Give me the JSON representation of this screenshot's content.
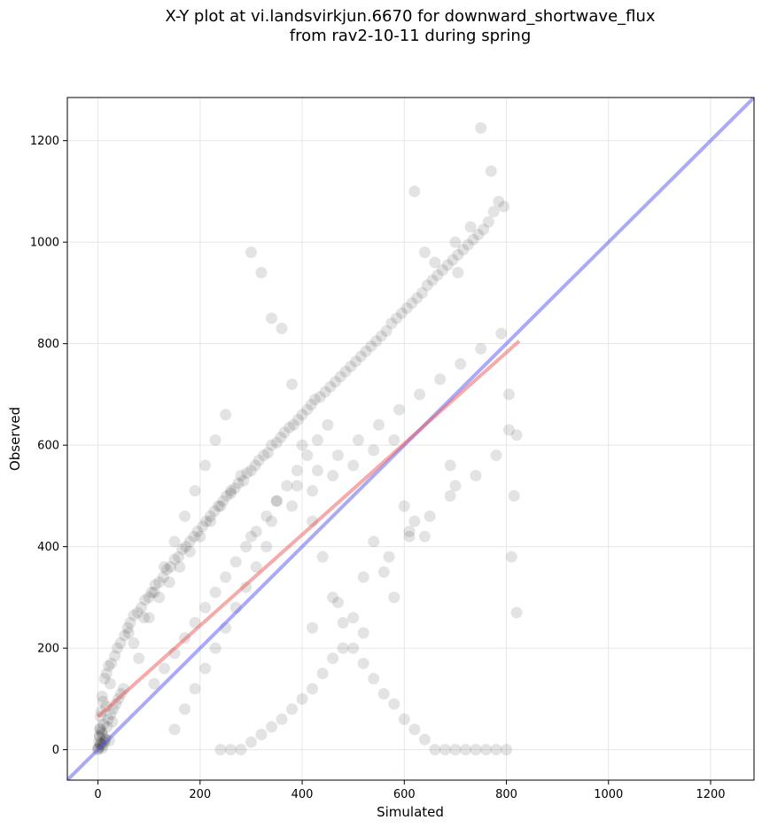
{
  "title": {
    "line1": "X-Y plot at vi.landsvirkjun.6670 for downward_shortwave_flux",
    "line2": "from rav2-10-11 during spring"
  },
  "chart_data": {
    "type": "scatter",
    "title": "X-Y plot at vi.landsvirkjun.6670 for downward_shortwave_flux from rav2-10-11 during spring",
    "xlabel": "Simulated",
    "ylabel": "Observed",
    "xlim": [
      -60,
      1285
    ],
    "ylim": [
      -60,
      1285
    ],
    "xticks": [
      0,
      200,
      400,
      600,
      800,
      1000,
      1200
    ],
    "yticks": [
      0,
      200,
      400,
      600,
      800,
      1000,
      1200
    ],
    "grid": true,
    "colors": {
      "points": "#000000",
      "identity_line": "#5555ee",
      "fit_line": "#ee5555"
    },
    "identity_line": {
      "x": [
        -60,
        1285
      ],
      "y": [
        -60,
        1285
      ]
    },
    "fit_line": {
      "x": [
        0,
        825
      ],
      "y": [
        65,
        805
      ]
    },
    "points": {
      "x": [
        0,
        2,
        5,
        8,
        10,
        12,
        15,
        3,
        6,
        9,
        4,
        7,
        11,
        14,
        18,
        20,
        22,
        25,
        28,
        30,
        35,
        40,
        45,
        50,
        0,
        3,
        5,
        10,
        16,
        24,
        2,
        4,
        6,
        8,
        13,
        17,
        21,
        26,
        33,
        38,
        44,
        52,
        58,
        63,
        70,
        78,
        85,
        92,
        100,
        105,
        112,
        120,
        128,
        135,
        142,
        150,
        158,
        165,
        172,
        180,
        188,
        195,
        205,
        212,
        220,
        228,
        236,
        245,
        252,
        260,
        268,
        275,
        285,
        292,
        300,
        308,
        315,
        325,
        333,
        340,
        350,
        358,
        365,
        375,
        383,
        392,
        400,
        410,
        418,
        425,
        435,
        445,
        455,
        465,
        475,
        485,
        495,
        505,
        515,
        525,
        535,
        545,
        555,
        565,
        575,
        585,
        595,
        605,
        615,
        625,
        635,
        645,
        655,
        665,
        675,
        685,
        695,
        705,
        715,
        725,
        735,
        745,
        755,
        765,
        775,
        785,
        795,
        805,
        815,
        820,
        150,
        170,
        190,
        210,
        230,
        250,
        270,
        290,
        310,
        330,
        250,
        230,
        210,
        190,
        170,
        150,
        130,
        110,
        90,
        70,
        300,
        320,
        340,
        360,
        380,
        400,
        420,
        440,
        460,
        480,
        500,
        520,
        540,
        560,
        580,
        600,
        620,
        640,
        660,
        680,
        700,
        720,
        740,
        760,
        780,
        800,
        620,
        640,
        660,
        700,
        705,
        730,
        750,
        770,
        805,
        810,
        690,
        700,
        640,
        620,
        600,
        610,
        540,
        560,
        580,
        500,
        520,
        480,
        460,
        440,
        420,
        400,
        380,
        360,
        340,
        320,
        300,
        280,
        260,
        240,
        300,
        340,
        380,
        420,
        460,
        500,
        540,
        580,
        350,
        390,
        430,
        470,
        510,
        550,
        590,
        630,
        670,
        710,
        750,
        790,
        420,
        470,
        520,
        570,
        610,
        650,
        690,
        740,
        780,
        820,
        60,
        80,
        100,
        120,
        140,
        160,
        180,
        200,
        220,
        240,
        260,
        280,
        110,
        130,
        150,
        170,
        190,
        210,
        230,
        250,
        270,
        290,
        310,
        330,
        350,
        370,
        390,
        410,
        430,
        450
      ],
      "y": [
        0,
        5,
        10,
        3,
        8,
        15,
        20,
        25,
        12,
        30,
        40,
        35,
        50,
        22,
        45,
        60,
        18,
        70,
        55,
        80,
        90,
        100,
        110,
        120,
        2,
        28,
        65,
        95,
        85,
        130,
        14,
        42,
        75,
        105,
        140,
        150,
        165,
        170,
        185,
        200,
        210,
        225,
        240,
        250,
        265,
        270,
        280,
        295,
        300,
        310,
        325,
        330,
        340,
        355,
        360,
        375,
        380,
        395,
        400,
        410,
        420,
        430,
        440,
        450,
        460,
        470,
        480,
        490,
        500,
        505,
        515,
        525,
        530,
        545,
        550,
        560,
        570,
        580,
        585,
        600,
        605,
        615,
        625,
        635,
        640,
        650,
        660,
        670,
        680,
        690,
        695,
        705,
        715,
        725,
        735,
        745,
        755,
        765,
        775,
        785,
        795,
        805,
        815,
        825,
        840,
        850,
        860,
        870,
        880,
        890,
        900,
        915,
        925,
        935,
        945,
        955,
        965,
        975,
        985,
        995,
        1005,
        1015,
        1025,
        1040,
        1060,
        1080,
        1070,
        630,
        500,
        270,
        40,
        80,
        120,
        160,
        200,
        240,
        280,
        320,
        360,
        400,
        660,
        610,
        560,
        510,
        460,
        410,
        360,
        310,
        260,
        210,
        980,
        940,
        850,
        830,
        720,
        600,
        450,
        380,
        300,
        250,
        200,
        170,
        140,
        110,
        90,
        60,
        40,
        20,
        0,
        0,
        0,
        0,
        0,
        0,
        0,
        0,
        1100,
        980,
        960,
        1000,
        940,
        1030,
        1225,
        1140,
        700,
        380,
        560,
        520,
        420,
        450,
        480,
        430,
        410,
        350,
        300,
        260,
        230,
        200,
        180,
        150,
        120,
        100,
        80,
        60,
        45,
        30,
        15,
        0,
        0,
        0,
        420,
        450,
        480,
        510,
        540,
        560,
        590,
        610,
        490,
        520,
        550,
        580,
        610,
        640,
        670,
        700,
        730,
        760,
        790,
        820,
        240,
        290,
        340,
        380,
        420,
        460,
        500,
        540,
        580,
        620,
        230,
        180,
        260,
        300,
        330,
        360,
        390,
        420,
        450,
        480,
        510,
        540,
        130,
        160,
        190,
        220,
        250,
        280,
        310,
        340,
        370,
        400,
        430,
        460,
        490,
        520,
        550,
        580,
        610,
        640
      ]
    }
  }
}
